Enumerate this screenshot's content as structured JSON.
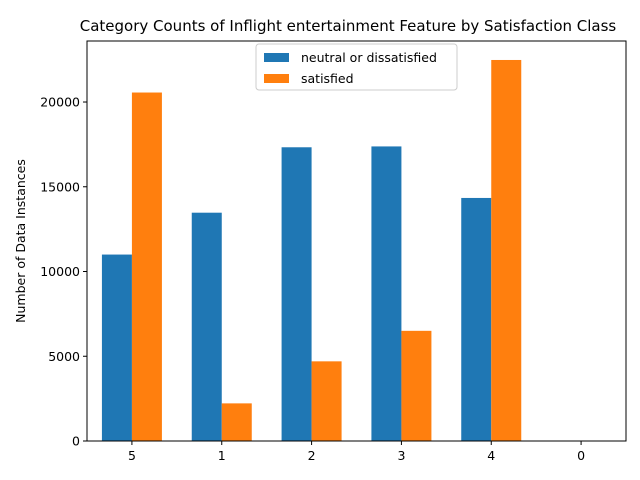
{
  "chart_data": {
    "type": "bar",
    "title": "Category Counts of Inflight entertainment Feature by Satisfaction Class",
    "xlabel": "",
    "ylabel": "Number of Data Instances",
    "categories": [
      "5",
      "1",
      "2",
      "3",
      "4",
      "0"
    ],
    "series": [
      {
        "name": "neutral or dissatisfied",
        "color": "#1f77b4",
        "values": [
          11000,
          13470,
          17330,
          17380,
          14340,
          0
        ]
      },
      {
        "name": "satisfied",
        "color": "#ff7f0e",
        "values": [
          20560,
          2220,
          4700,
          6500,
          22480,
          0
        ]
      }
    ],
    "ylim": [
      0,
      23600
    ],
    "yticks": [
      0,
      5000,
      10000,
      15000,
      20000
    ],
    "grid": false,
    "legend_position": "top-center"
  }
}
